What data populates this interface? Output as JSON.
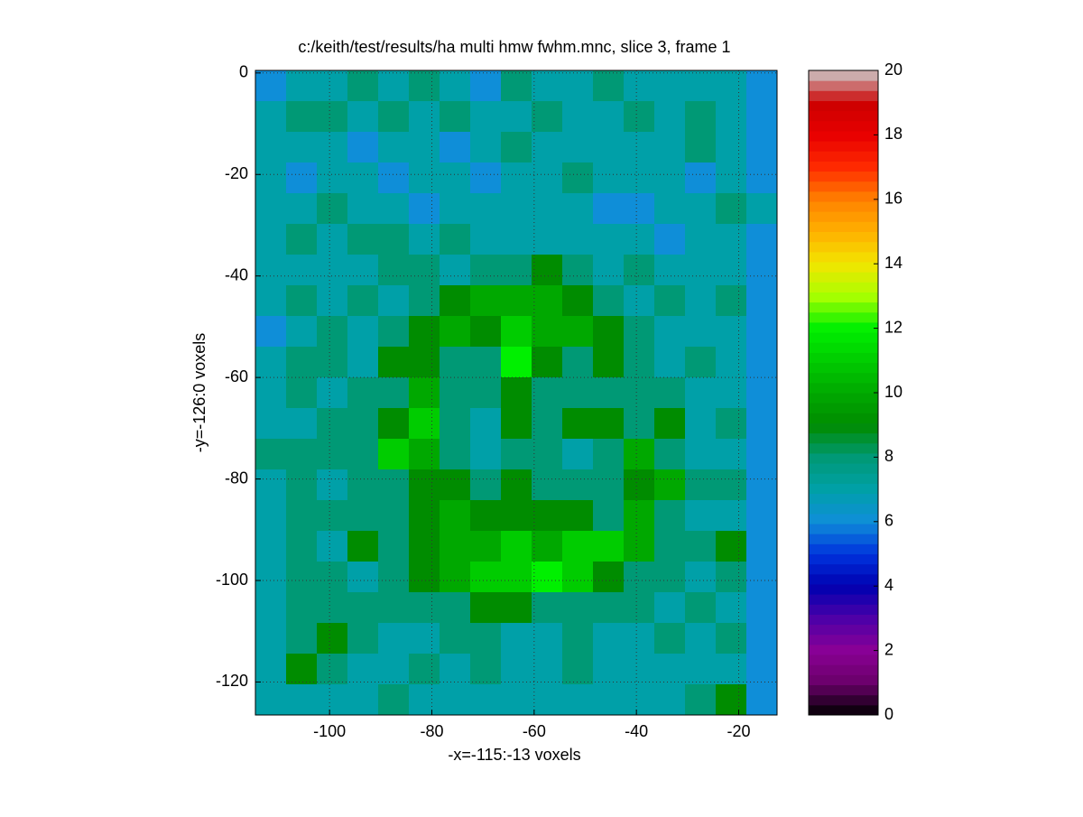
{
  "chart_data": {
    "type": "heatmap",
    "title": "c:/keith/test/results/ha multi hmw fwhm.mnc, slice 3, frame 1",
    "x_label": "-x=-115:-13 voxels",
    "y_label": "-y=-126:0 voxels",
    "xlim": [
      -114.5,
      -12.5
    ],
    "ylim": [
      -126.5,
      0.5
    ],
    "xticks": [
      -100,
      -80,
      -60,
      -40,
      -20
    ],
    "yticks": [
      0,
      -20,
      -40,
      -60,
      -80,
      -100,
      -120
    ],
    "grid": true,
    "clim": [
      0,
      20
    ],
    "cticks": [
      0,
      2,
      4,
      6,
      8,
      10,
      12,
      14,
      16,
      18,
      20
    ],
    "colormap": [
      "#000000",
      "#6a006a",
      "#8a0095",
      "#4d00a8",
      "#0000b0",
      "#0033dd",
      "#0f8ed8",
      "#00a0a8",
      "#009975",
      "#008c00",
      "#00a800",
      "#00cc00",
      "#00f000",
      "#a8ff00",
      "#f2e600",
      "#ffb000",
      "#ff8000",
      "#ff2a00",
      "#e80000",
      "#cc0000",
      "#cccccc"
    ],
    "z": [
      [
        6,
        7,
        7,
        8,
        7,
        8,
        7,
        6,
        8,
        7,
        7,
        8,
        7,
        7,
        7,
        7,
        6
      ],
      [
        7,
        8,
        8,
        7,
        8,
        7,
        8,
        7,
        7,
        8,
        7,
        7,
        8,
        7,
        8,
        7,
        6
      ],
      [
        7,
        7,
        7,
        6,
        7,
        7,
        6,
        7,
        8,
        7,
        7,
        7,
        7,
        7,
        8,
        7,
        6
      ],
      [
        7,
        6,
        7,
        7,
        6,
        7,
        7,
        6,
        7,
        7,
        8,
        7,
        7,
        7,
        6,
        7,
        6
      ],
      [
        7,
        7,
        8,
        7,
        7,
        6,
        7,
        7,
        7,
        7,
        7,
        6,
        6,
        7,
        7,
        8,
        7
      ],
      [
        7,
        8,
        7,
        8,
        8,
        7,
        8,
        7,
        7,
        7,
        7,
        7,
        7,
        6,
        7,
        7,
        6
      ],
      [
        7,
        7,
        7,
        7,
        8,
        8,
        7,
        8,
        8,
        9,
        8,
        7,
        8,
        7,
        7,
        7,
        6
      ],
      [
        7,
        8,
        7,
        8,
        7,
        8,
        9,
        10,
        10,
        10,
        9,
        8,
        7,
        8,
        7,
        8,
        6
      ],
      [
        6,
        7,
        8,
        7,
        8,
        9,
        10,
        9,
        11,
        10,
        10,
        9,
        8,
        7,
        7,
        7,
        6
      ],
      [
        7,
        8,
        8,
        7,
        9,
        9,
        8,
        8,
        12,
        9,
        8,
        9,
        8,
        7,
        8,
        7,
        6
      ],
      [
        7,
        8,
        7,
        8,
        8,
        10,
        8,
        8,
        9,
        8,
        8,
        8,
        8,
        8,
        7,
        7,
        6
      ],
      [
        7,
        7,
        8,
        8,
        9,
        11,
        8,
        7,
        9,
        8,
        9,
        9,
        8,
        9,
        7,
        8,
        6
      ],
      [
        8,
        8,
        8,
        8,
        11,
        10,
        8,
        7,
        8,
        8,
        7,
        8,
        10,
        8,
        7,
        7,
        6
      ],
      [
        7,
        8,
        7,
        8,
        8,
        9,
        9,
        8,
        9,
        8,
        8,
        8,
        9,
        10,
        8,
        8,
        6
      ],
      [
        7,
        8,
        8,
        8,
        8,
        9,
        10,
        9,
        9,
        9,
        9,
        8,
        10,
        8,
        7,
        7,
        6
      ],
      [
        7,
        8,
        7,
        9,
        8,
        9,
        10,
        10,
        11,
        10,
        11,
        11,
        10,
        8,
        8,
        9,
        6
      ],
      [
        7,
        8,
        8,
        7,
        8,
        9,
        10,
        11,
        11,
        12,
        11,
        9,
        8,
        8,
        7,
        8,
        6
      ],
      [
        7,
        8,
        8,
        8,
        8,
        8,
        8,
        9,
        9,
        8,
        8,
        8,
        8,
        7,
        8,
        7,
        6
      ],
      [
        7,
        8,
        9,
        8,
        7,
        7,
        8,
        8,
        7,
        7,
        8,
        7,
        7,
        8,
        7,
        8,
        6
      ],
      [
        7,
        9,
        8,
        7,
        7,
        8,
        7,
        8,
        7,
        7,
        8,
        7,
        7,
        7,
        7,
        7,
        6
      ],
      [
        7,
        7,
        7,
        7,
        8,
        7,
        7,
        7,
        7,
        7,
        7,
        7,
        7,
        7,
        8,
        9,
        6
      ]
    ]
  }
}
